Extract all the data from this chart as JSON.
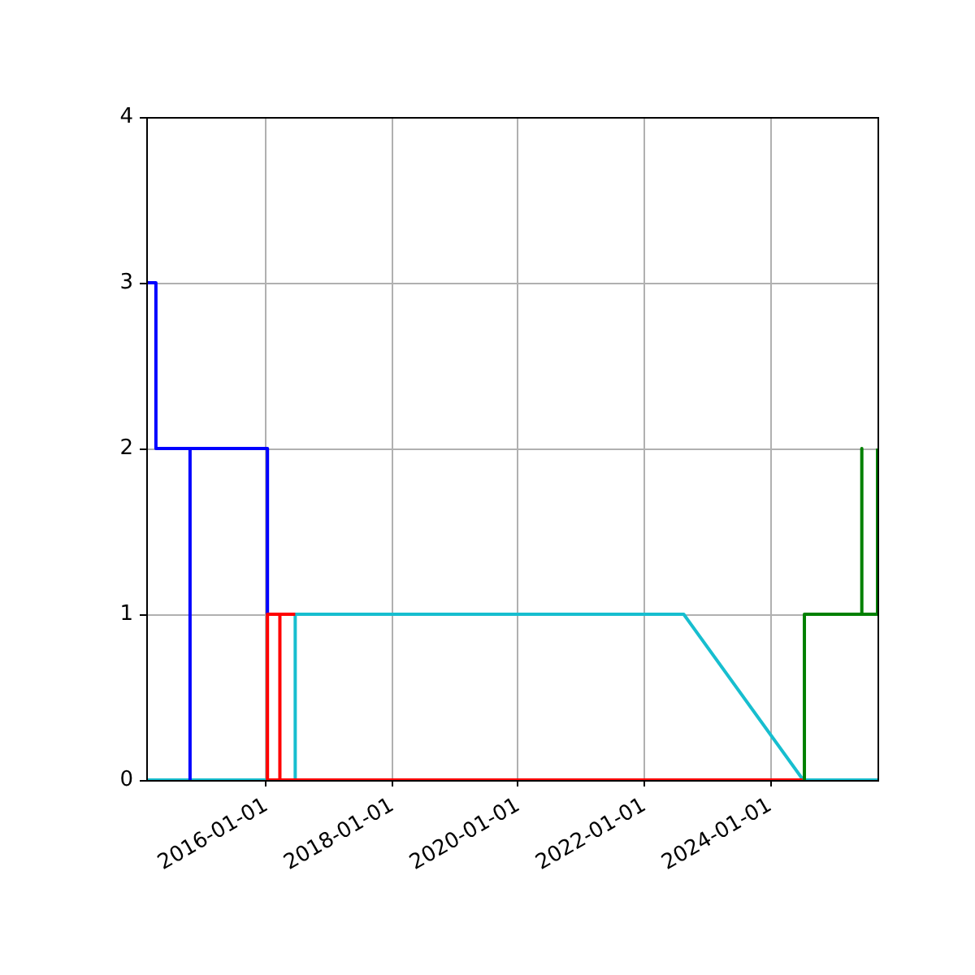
{
  "chart_data": {
    "type": "line",
    "xlim": [
      "2014-02-03",
      "2025-09-14"
    ],
    "xticks": [
      "2016-01-01",
      "2018-01-01",
      "2020-01-01",
      "2022-01-01",
      "2024-01-01"
    ],
    "ylim": [
      0,
      4
    ],
    "yticks": [
      0,
      1,
      2,
      3,
      4
    ],
    "grid": true,
    "series": [
      {
        "color": "#17becf",
        "x": [
          "2014-02-03",
          "2016-06-16",
          "2016-06-16",
          "2022-08-17",
          "2024-07-10",
          "2025-09-14"
        ],
        "values": [
          0,
          0,
          1,
          1,
          0,
          0
        ]
      },
      {
        "color": "#0000ff",
        "x": [
          "2014-02-03",
          "2014-03-31",
          "2014-03-31",
          "2014-10-15",
          "2014-10-15",
          "2014-10-15",
          "2016-01-07",
          "2016-01-07"
        ],
        "values": [
          3,
          3,
          2,
          2,
          0,
          2,
          2,
          1
        ]
      },
      {
        "color": "#ff0000",
        "x": [
          "2016-06-16",
          "2016-03-19",
          "2016-03-19",
          "2016-03-19",
          "2016-01-07",
          "2016-01-07",
          "2024-07-06"
        ],
        "values": [
          1,
          1,
          0,
          1,
          1,
          0,
          0
        ]
      },
      {
        "color": "#008000",
        "x": [
          "2024-07-17",
          "2024-07-17",
          "2025-06-15",
          "2025-06-15",
          "2025-06-15",
          "2025-09-14",
          "2025-09-14"
        ],
        "values": [
          0,
          1,
          1,
          2,
          1,
          1,
          2
        ]
      }
    ]
  }
}
